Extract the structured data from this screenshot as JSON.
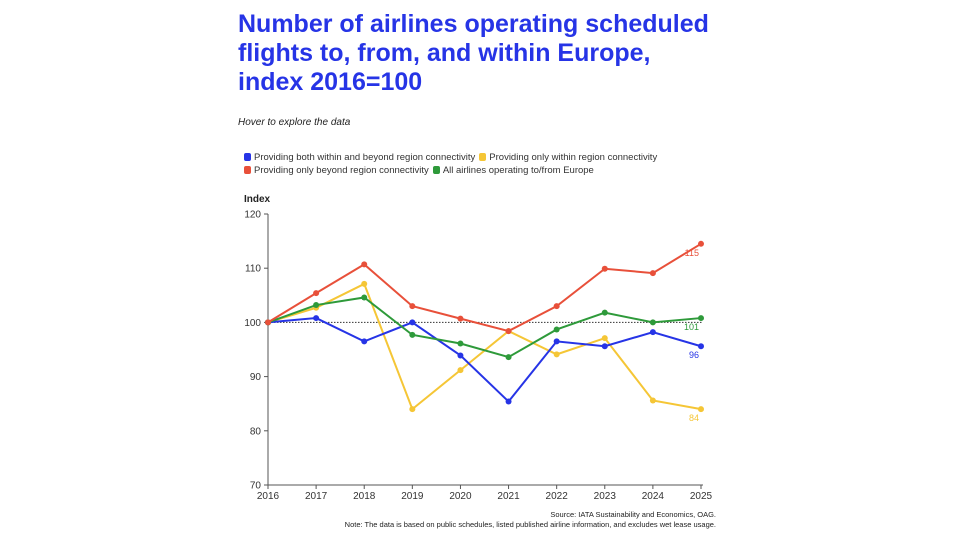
{
  "header": {
    "title": "Number of airlines operating scheduled flights to, from, and within Europe, index 2016=100",
    "subtitle": "Hover to explore the data"
  },
  "footer": {
    "source": "Source: IATA Sustainability and Economics, OAG.",
    "note": "Note: The data is based on public schedules, listed published airline information, and excludes wet lease usage."
  },
  "chart_data": {
    "type": "line",
    "title": "Number of airlines operating scheduled flights to, from, and within Europe, index 2016=100",
    "ylabel": "Index",
    "xlabel": "",
    "x": [
      2016,
      2017,
      2018,
      2019,
      2020,
      2021,
      2022,
      2023,
      2024,
      2025
    ],
    "ylim": [
      70,
      120
    ],
    "yticks": [
      70,
      80,
      90,
      100,
      110,
      120
    ],
    "reference_line": 100,
    "grid": false,
    "legend_placement": "top",
    "series": [
      {
        "name": "Providing both within and beyond region connectivity",
        "color": "#2634e6",
        "values": [
          100,
          100.8,
          96.5,
          100,
          93.9,
          85.4,
          96.5,
          95.6,
          98.2,
          95.6
        ],
        "end_label": "96"
      },
      {
        "name": "Providing only within region connectivity",
        "color": "#f5c636",
        "values": [
          100,
          102.7,
          107.1,
          84.0,
          91.2,
          98.4,
          94.1,
          97.1,
          85.6,
          84.0
        ],
        "end_label": "84"
      },
      {
        "name": "Providing only beyond region connectivity",
        "color": "#e8503a",
        "values": [
          100,
          105.4,
          110.7,
          103.0,
          100.7,
          98.4,
          103.0,
          109.9,
          109.1,
          114.5
        ],
        "end_label": "115"
      },
      {
        "name": "All airlines operating to/from Europe",
        "color": "#2e9a3a",
        "values": [
          100,
          103.2,
          104.6,
          97.7,
          96.1,
          93.6,
          98.7,
          101.8,
          100,
          100.8
        ],
        "end_label": "101"
      }
    ],
    "draw_order": [
      1,
      0,
      3,
      2
    ]
  }
}
